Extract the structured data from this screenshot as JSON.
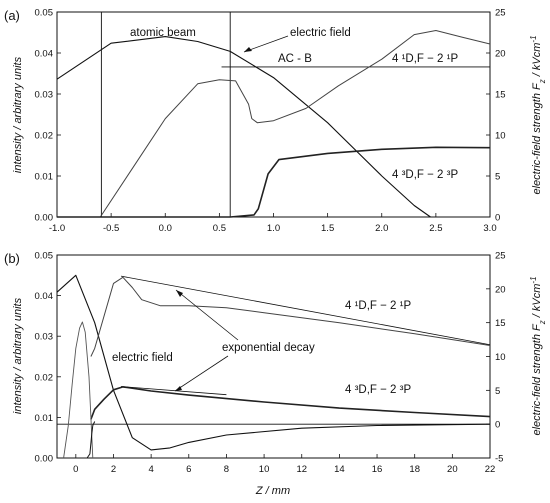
{
  "chart_data": [
    {
      "panel": "a",
      "type": "line",
      "panel_label": "(a)",
      "xlabel": "",
      "ylabel": "intensity / arbitrary units",
      "y2label": "electric-field strength F_z / kVcm^-1",
      "xlim": [
        -1.0,
        3.0
      ],
      "ylim": [
        0,
        0.05
      ],
      "y2lim": [
        0,
        25
      ],
      "x_ticks": [
        "-1.0",
        "-0.5",
        "0.0",
        "0.5",
        "1.0",
        "1.5",
        "2.0",
        "2.5",
        "3.0"
      ],
      "y_ticks": [
        "0.00",
        "0.01",
        "0.02",
        "0.03",
        "0.04",
        "0.05"
      ],
      "y2_ticks": [
        "0",
        "5",
        "10",
        "15",
        "20",
        "25"
      ],
      "vertical_lines_x": [
        -0.59,
        0.6
      ],
      "hline_y2": 18.3,
      "hline_xrange": [
        0.52,
        3.0
      ],
      "annotations": {
        "beam": "atomic beam",
        "field": "electric field",
        "acb": "AC - B",
        "singlet": "4 ¹D,F − 2 ¹P",
        "triplet": "4 ³D,F − 2 ³P"
      },
      "series": [
        {
          "name": "electric field",
          "x": [
            -1.0,
            -0.5,
            0.0,
            0.3,
            0.6,
            1.0,
            1.5,
            2.0,
            2.3,
            2.45
          ],
          "y2": [
            16.8,
            21.2,
            22.0,
            21.4,
            20.2,
            17.0,
            11.5,
            5.0,
            1.4,
            0.0
          ]
        },
        {
          "name": "4 ¹D,F − 2 ¹P",
          "x": [
            -0.6,
            -0.3,
            0.0,
            0.3,
            0.5,
            0.65,
            0.77,
            0.8,
            0.85,
            1.0,
            1.3,
            1.6,
            2.0,
            2.3,
            2.5,
            2.75,
            3.0
          ],
          "y": [
            0.0,
            0.012,
            0.024,
            0.0325,
            0.0335,
            0.0332,
            0.0275,
            0.024,
            0.023,
            0.0235,
            0.0265,
            0.032,
            0.0385,
            0.0445,
            0.0455,
            0.0438,
            0.0422
          ]
        },
        {
          "name": "4 ³D,F − 2 ³P",
          "x": [
            -1.0,
            0.6,
            0.82,
            0.86,
            0.95,
            1.05,
            1.5,
            2.0,
            2.5,
            3.0
          ],
          "y": [
            0.0,
            0.0,
            0.0005,
            0.002,
            0.0105,
            0.014,
            0.0155,
            0.0165,
            0.017,
            0.0169
          ]
        }
      ]
    },
    {
      "panel": "b",
      "type": "line",
      "panel_label": "(b)",
      "xlabel": "Z / mm",
      "ylabel": "intensity / arbitrary units",
      "y2label": "electric-field strength F_z / kVcm^-1",
      "xlim": [
        -1.0,
        22.0
      ],
      "ylim": [
        0,
        0.05
      ],
      "y2lim": [
        -5,
        25
      ],
      "x_ticks": [
        "0",
        "2",
        "4",
        "6",
        "8",
        "10",
        "12",
        "14",
        "16",
        "18",
        "20",
        "22"
      ],
      "y_ticks": [
        "0.00",
        "0.01",
        "0.02",
        "0.03",
        "0.04",
        "0.05"
      ],
      "y2_ticks": [
        "-5",
        "0",
        "5",
        "10",
        "15",
        "20",
        "25"
      ],
      "hline_y2": 0,
      "annotations": {
        "field": "electric field",
        "decay": "exponential decay",
        "singlet": "4 ¹D,F − 2 ¹P",
        "triplet": "4 ³D,F − 2 ³P"
      },
      "series": [
        {
          "name": "electric field",
          "x": [
            -1.0,
            0.0,
            1.0,
            2.0,
            3.0,
            4.0,
            5.0,
            6.0,
            8.0,
            12.0,
            16.0,
            22.0
          ],
          "y2": [
            19.5,
            22.0,
            15.0,
            5.0,
            -2.0,
            -3.8,
            -3.5,
            -2.7,
            -1.6,
            -0.6,
            -0.2,
            0.0
          ]
        },
        {
          "name": "4 ¹D,F − 2 ¹P",
          "x": [
            0.8,
            1.0,
            1.5,
            2.0,
            2.5,
            3.0,
            3.5,
            4.5,
            6.0,
            8.0,
            10.0,
            14.0,
            18.0,
            22.0
          ],
          "y": [
            0.025,
            0.027,
            0.035,
            0.043,
            0.0445,
            0.042,
            0.039,
            0.0375,
            0.0375,
            0.037,
            0.0358,
            0.0333,
            0.0306,
            0.0277
          ]
        },
        {
          "name": "4 ³D,F − 2 ³P",
          "x": [
            0.8,
            1.0,
            1.5,
            2.0,
            2.5,
            3.0,
            4.0,
            6.0,
            10.0,
            14.0,
            18.0,
            22.0
          ],
          "y": [
            0.0095,
            0.012,
            0.0145,
            0.0168,
            0.0175,
            0.0172,
            0.0165,
            0.0155,
            0.0138,
            0.0123,
            0.0112,
            0.0102
          ]
        },
        {
          "name": "short singlet curve",
          "x": [
            -0.65,
            -0.4,
            -0.2,
            0.0,
            0.2,
            0.35,
            0.5,
            0.7,
            0.9
          ],
          "y": [
            0.0,
            0.008,
            0.018,
            0.027,
            0.032,
            0.0335,
            0.031,
            0.02,
            0.0
          ]
        },
        {
          "name": "short triplet curve",
          "x": [
            0.6,
            0.75,
            0.85,
            0.9,
            1.0
          ],
          "y": [
            0.0,
            0.001,
            0.006,
            0.008,
            0.009
          ]
        }
      ],
      "decay_fits": [
        {
          "x": [
            2.4,
            22.0
          ],
          "y": [
            0.0448,
            0.0279
          ]
        },
        {
          "x": [
            2.4,
            8.0
          ],
          "y": [
            0.0176,
            0.0156
          ]
        }
      ]
    }
  ]
}
